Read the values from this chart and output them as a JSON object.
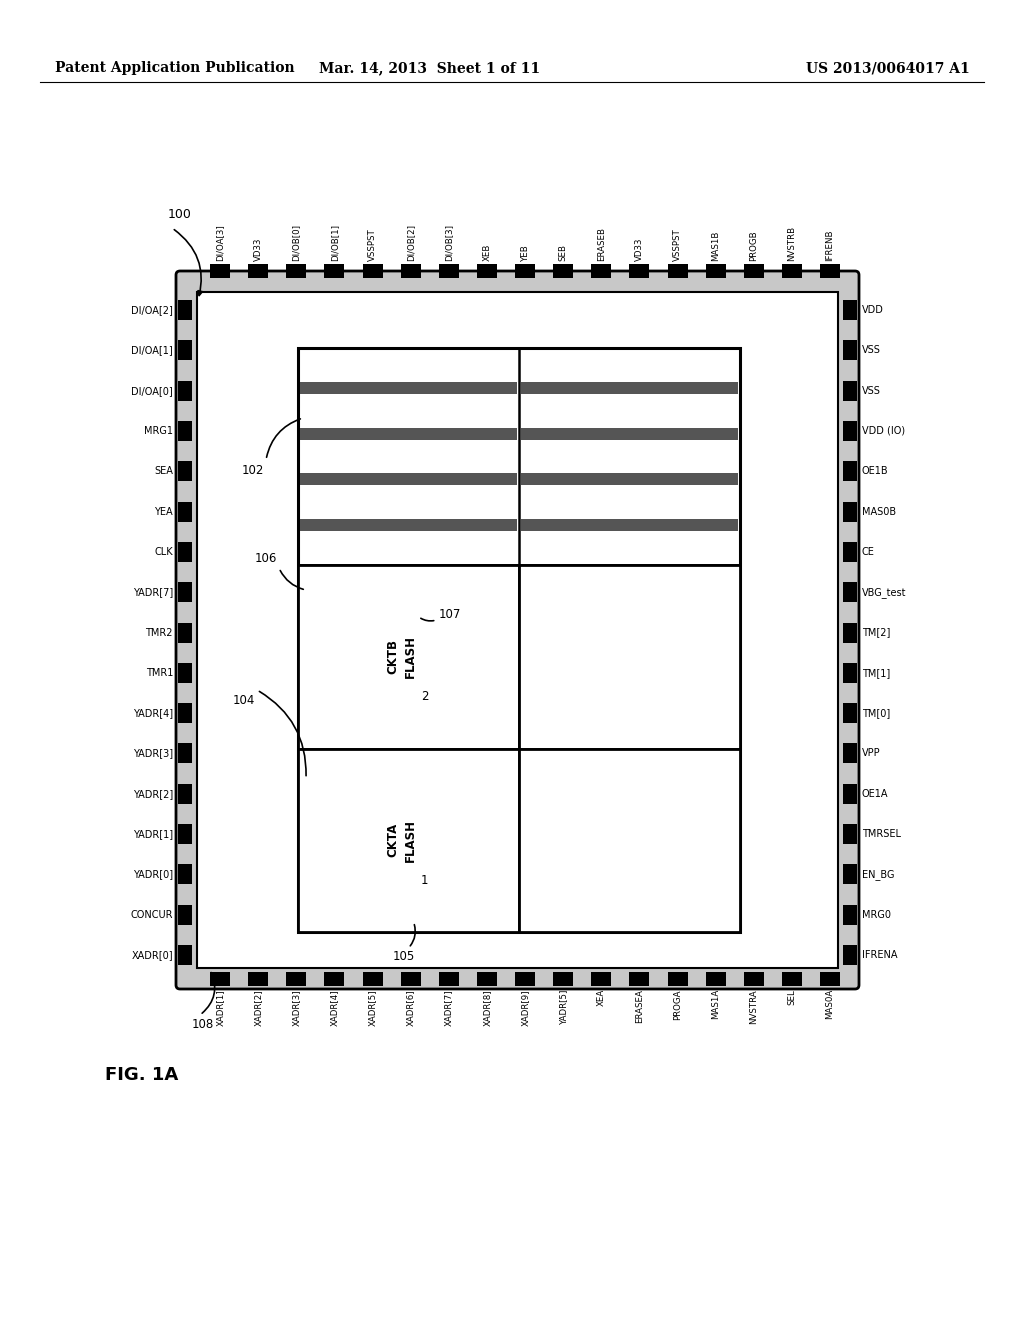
{
  "header_left": "Patent Application Publication",
  "header_mid": "Mar. 14, 2013  Sheet 1 of 11",
  "header_right": "US 2013/0064017 A1",
  "fig_label": "FIG. 1A",
  "top_pins": [
    "DI/OA[3]",
    "VD33",
    "DI/OB[0]",
    "DI/OB[1]",
    "VSSPST",
    "DI/OB[2]",
    "DI/OB[3]",
    "XEB",
    "YEB",
    "SEB",
    "ERASEB",
    "VD33",
    "VSSPST",
    "MAS1B",
    "PROGB",
    "NVSTRB",
    "IFRENB"
  ],
  "bottom_pins": [
    "XADR[1]",
    "XADR[2]",
    "XADR[3]",
    "XADR[4]",
    "XADR[5]",
    "XADR[6]",
    "XADR[7]",
    "XADR[8]",
    "XADR[9]",
    "YADR[5]",
    "XEA",
    "ERASEA",
    "PROGA",
    "MAS1A",
    "NVSTRA",
    "SEL",
    "MAS0A"
  ],
  "left_pins": [
    "DI/OA[2]",
    "DI/OA[1]",
    "DI/OA[0]",
    "MRG1",
    "SEA",
    "YEA",
    "CLK",
    "YADR[7]",
    "TMR2",
    "TMR1",
    "YADR[4]",
    "YADR[3]",
    "YADR[2]",
    "YADR[1]",
    "YADR[0]",
    "CONCUR",
    "XADR[0]"
  ],
  "right_pins": [
    "VDD",
    "VSS",
    "VSS",
    "VDD (IO)",
    "OE1B",
    "MAS0B",
    "CE",
    "VBG_test",
    "TM[2]",
    "TM[1]",
    "TM[0]",
    "VPP",
    "OE1A",
    "TMRSEL",
    "EN_BG",
    "MRG0",
    "IFRENA"
  ],
  "background": "#ffffff",
  "line_color": "#000000"
}
